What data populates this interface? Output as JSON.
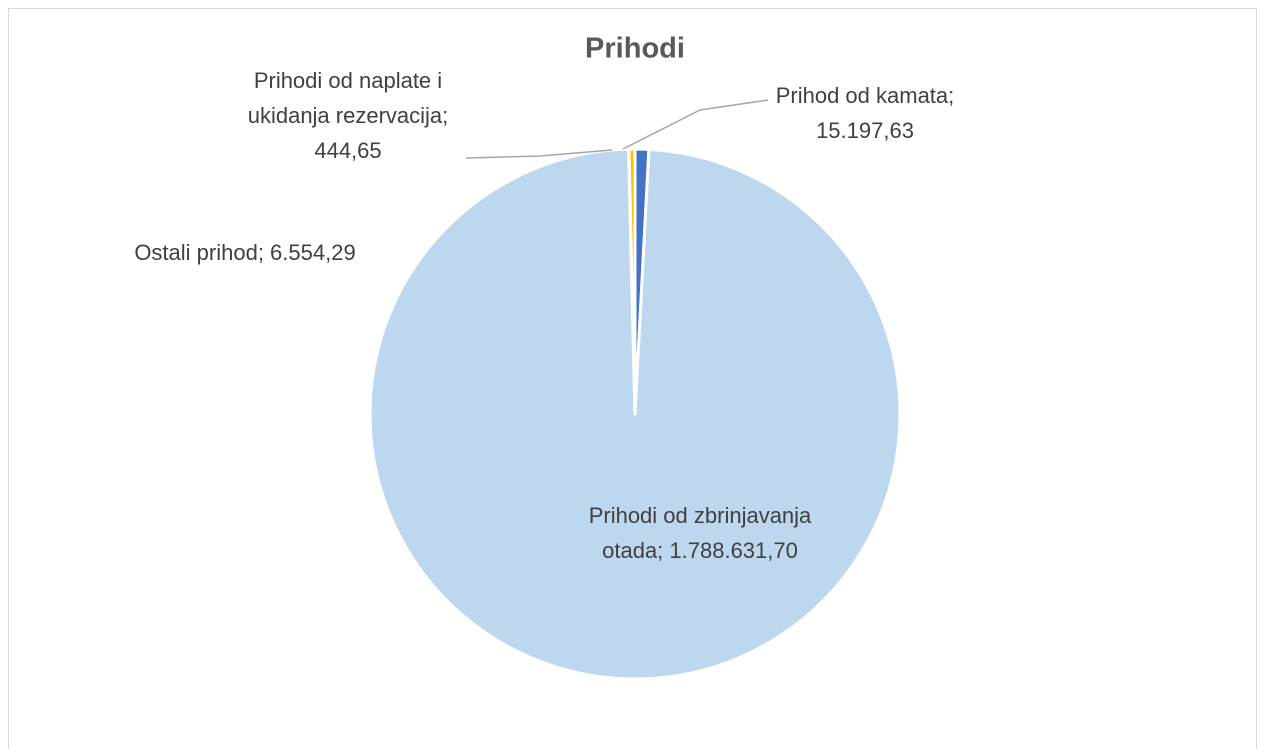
{
  "chart_data": {
    "type": "pie",
    "title": "Prihodi",
    "data_labels": [
      "Prihod od kamata; 15.197,63",
      "Prihodi od zbrinjavanja otada; 1.788.631,70",
      "Prihodi od naplate i ukidanja rezervacija; 444,65",
      "Ostali prihod; 6.554,29"
    ],
    "values": [
      15197.63,
      1788631.7,
      444.65,
      6554.29
    ],
    "colors": [
      "#4472c4",
      "#bdd7ee",
      "#a5a5a5",
      "#ffc000"
    ]
  }
}
